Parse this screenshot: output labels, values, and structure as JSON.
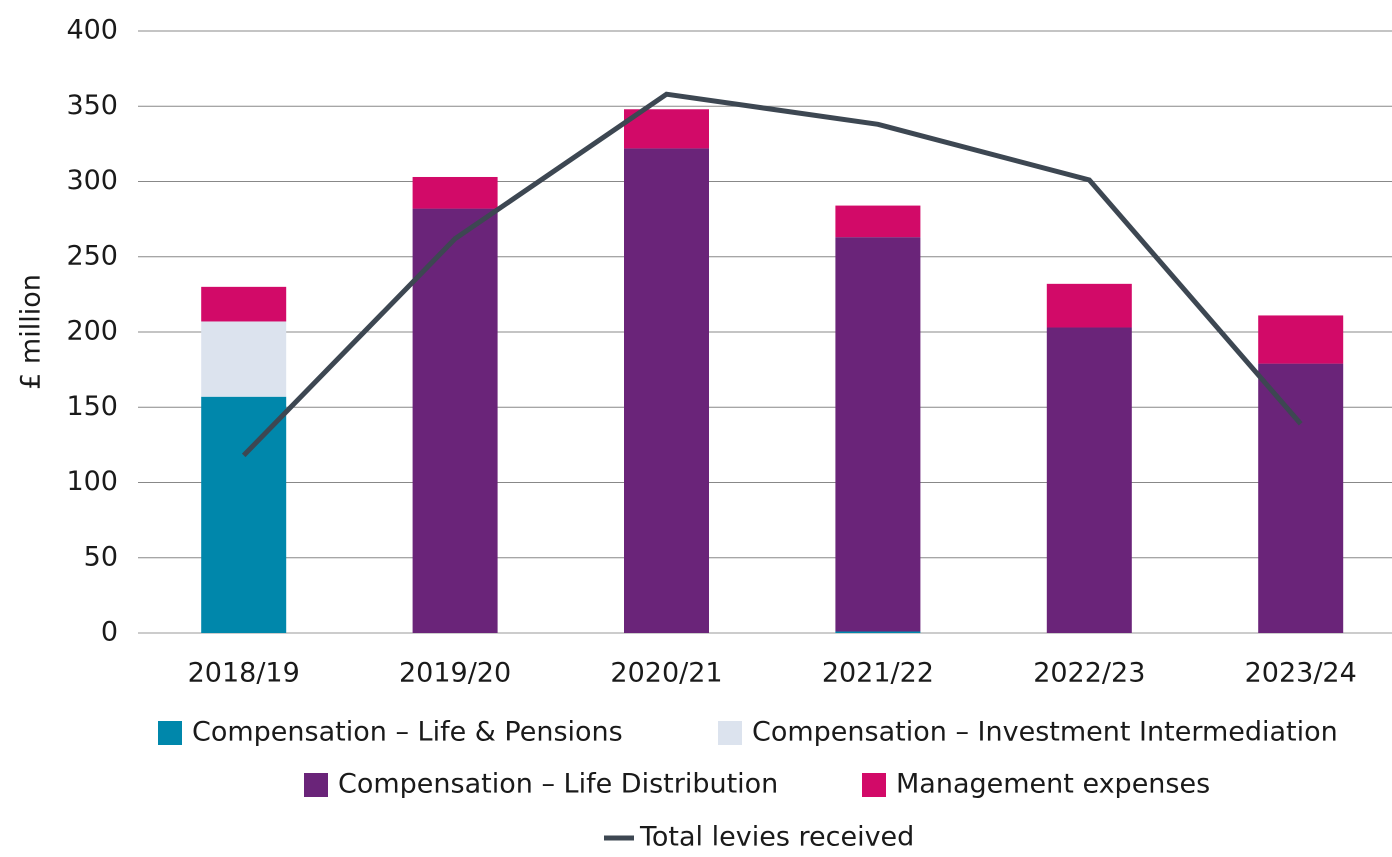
{
  "chart_data": {
    "type": "bar",
    "stacked": true,
    "y_label": "£ million",
    "categories": [
      "2018/19",
      "2019/20",
      "2020/21",
      "2021/22",
      "2022/23",
      "2023/24"
    ],
    "series": [
      {
        "name": "Compensation – Life & Pensions",
        "color": "#0087ab",
        "values": [
          157,
          0,
          0,
          1,
          0,
          0
        ]
      },
      {
        "name": "Compensation – Investment Intermediation",
        "color": "#dce3ee",
        "values": [
          50,
          0,
          0,
          0,
          0,
          0
        ]
      },
      {
        "name": "Compensation – Life Distribution",
        "color": "#6a2479",
        "values": [
          0,
          282,
          322,
          262,
          203,
          179
        ]
      },
      {
        "name": "Management expenses",
        "color": "#d20a68",
        "values": [
          23,
          21,
          26,
          21,
          29,
          32
        ]
      },
      {
        "name": "Total levies received",
        "color": "#3d4752",
        "type": "line",
        "values": [
          118,
          262,
          358,
          338,
          301,
          139
        ]
      }
    ],
    "ylim": [
      0,
      400
    ],
    "yticks": [
      0,
      50,
      100,
      150,
      200,
      250,
      300,
      350,
      400
    ],
    "grid": true
  }
}
